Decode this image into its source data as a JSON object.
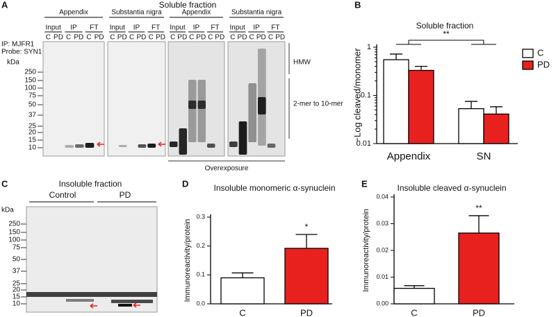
{
  "panel_labels": [
    "A",
    "B",
    "C",
    "D",
    "E"
  ],
  "blots": {
    "title": "Soluble fraction",
    "ip_probe": [
      "IP: MJFR1",
      "Probe: SYN1"
    ],
    "kda": "kDa",
    "markers": [
      "250",
      "150",
      "100",
      "75",
      "50",
      "37",
      "25",
      "20",
      "15",
      "10"
    ],
    "panels": [
      {
        "tissue": "Appendix",
        "groups": [
          "Input",
          "IP",
          "FT"
        ],
        "lanes": [
          "C",
          "PD",
          "C",
          "PD",
          "C",
          "PD"
        ]
      },
      {
        "tissue": "Substantia nigra",
        "groups": [
          "Input",
          "IP",
          "FT"
        ],
        "lanes": [
          "C",
          "PD",
          "C",
          "PD",
          "C",
          "PD"
        ]
      },
      {
        "tissue": "Appendix",
        "groups": [
          "Input",
          "IP",
          "FT"
        ],
        "lanes": [
          "C",
          "PD",
          "C",
          "PD",
          "C",
          "PD"
        ]
      },
      {
        "tissue": "Substantia nigra",
        "groups": [
          "Input",
          "IP",
          "FT"
        ],
        "lanes": [
          "C",
          "PD",
          "C",
          "PD",
          "C",
          "PD"
        ]
      }
    ],
    "right_labels": [
      "HMW",
      "2-mer to 10-mer"
    ],
    "overexposure": "Overexposure"
  },
  "insoluble_blot": {
    "title": "Insoluble fraction",
    "groups": [
      "Control",
      "PD"
    ],
    "kda": "kDa",
    "markers": [
      "250",
      "150",
      "100",
      "75",
      "50",
      "37",
      "25",
      "20",
      "15",
      "10"
    ]
  },
  "chart_data": [
    {
      "type": "bar",
      "title": "Soluble fraction",
      "ylabel": "−Log cleaved/monomer",
      "categories": [
        "Appendix",
        "SN"
      ],
      "series": [
        {
          "name": "C",
          "color": "#ffffff",
          "values": [
            0.55,
            0.053
          ],
          "errors": [
            0.17,
            0.022
          ]
        },
        {
          "name": "PD",
          "color": "#e8211f",
          "values": [
            0.33,
            0.041
          ],
          "errors": [
            0.07,
            0.017
          ]
        }
      ],
      "ylim": [
        0.01,
        1
      ],
      "yticks": [
        0.01,
        0.1,
        1
      ],
      "log_scale": true,
      "annotation": "**",
      "legend": "right"
    },
    {
      "type": "bar",
      "title": "Insoluble monomeric α-synuclein",
      "ylabel": "Immunoreactivity/protein",
      "categories": [
        "C",
        "PD"
      ],
      "colors": [
        "#ffffff",
        "#e8211f"
      ],
      "values": [
        0.09,
        0.192
      ],
      "errors": [
        0.017,
        0.048
      ],
      "ylim": [
        0,
        0.3
      ],
      "yticks": [
        {
          "value": 0,
          "label": "0.0"
        },
        0.1,
        0.2,
        0.3
      ],
      "annotation": "*"
    },
    {
      "type": "bar",
      "title": "Insoluble cleaved α-synuclein",
      "ylabel": "Immunoreactivity/protein",
      "categories": [
        "C",
        "PD"
      ],
      "colors": [
        "#ffffff",
        "#e8211f"
      ],
      "values": [
        0.0058,
        0.0265
      ],
      "errors": [
        0.001,
        0.0065
      ],
      "ylim": [
        0,
        0.04
      ],
      "yticks": [
        {
          "value": 0,
          "label": "0.00"
        },
        0.01,
        0.02,
        0.03,
        0.04
      ],
      "annotation": "**"
    }
  ]
}
